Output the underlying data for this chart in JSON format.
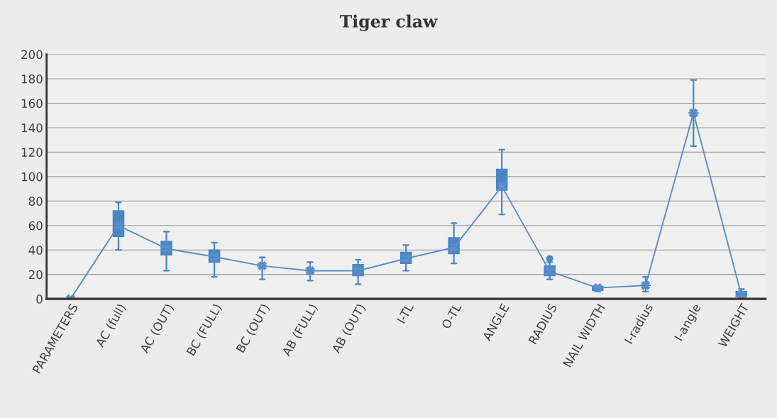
{
  "chart_data": {
    "type": "box",
    "title": "Tiger claw",
    "categories": [
      "PARAMETERS",
      "AC (full)",
      "AC (OUT)",
      "BC (FULL)",
      "BC (OUT)",
      "AB (FULL)",
      "AB (OUT)",
      "I-TL",
      "O-TL",
      "ANGLE",
      "RADIUS",
      "NAIL WIDTH",
      "I-radius",
      "I-angle",
      "WEIGHT"
    ],
    "color": "#4a86c5",
    "boxes": [
      {
        "low": 0,
        "q1": 0,
        "median": 0,
        "q3": 0,
        "high": 0
      },
      {
        "low": 40,
        "q1": 51,
        "median": 62,
        "q3": 72,
        "high": 79
      },
      {
        "low": 23,
        "q1": 36,
        "median": 41,
        "q3": 47,
        "high": 55
      },
      {
        "low": 18,
        "q1": 30,
        "median": 34,
        "q3": 40,
        "high": 46
      },
      {
        "low": 16,
        "q1": 27,
        "median": 27,
        "q3": 27,
        "high": 34
      },
      {
        "low": 15,
        "q1": 23,
        "median": 23,
        "q3": 23,
        "high": 30
      },
      {
        "low": 12,
        "q1": 19,
        "median": 23,
        "q3": 28,
        "high": 32
      },
      {
        "low": 23,
        "q1": 29,
        "median": 33,
        "q3": 38,
        "high": 44
      },
      {
        "low": 29,
        "q1": 37,
        "median": 43,
        "q3": 50,
        "high": 62
      },
      {
        "low": 69,
        "q1": 89,
        "median": 97,
        "q3": 106,
        "high": 122
      },
      {
        "low": 16,
        "q1": 19,
        "median": 22,
        "q3": 27,
        "high": 30,
        "outliers": [
          33
        ]
      },
      {
        "low": 6,
        "q1": 7,
        "median": 8,
        "q3": 10,
        "high": 11
      },
      {
        "low": 6,
        "q1": 11,
        "median": 11,
        "q3": 11,
        "high": 18
      },
      {
        "low": 125,
        "q1": 152,
        "median": 152,
        "q3": 152,
        "high": 179
      },
      {
        "low": 2,
        "q1": 2,
        "median": 4,
        "q3": 6,
        "high": 8
      }
    ],
    "series": [
      {
        "type": "line",
        "color": "#5b8fc7",
        "marker": "cross",
        "values": [
          0,
          60,
          41,
          34.5,
          27,
          23,
          23,
          33,
          42,
          92,
          22.5,
          9,
          11,
          152,
          3
        ]
      }
    ],
    "ylim": [
      0,
      200
    ],
    "yticks": [
      0,
      20,
      40,
      60,
      80,
      100,
      120,
      140,
      160,
      180,
      200
    ],
    "grid": "y",
    "legend": false
  }
}
